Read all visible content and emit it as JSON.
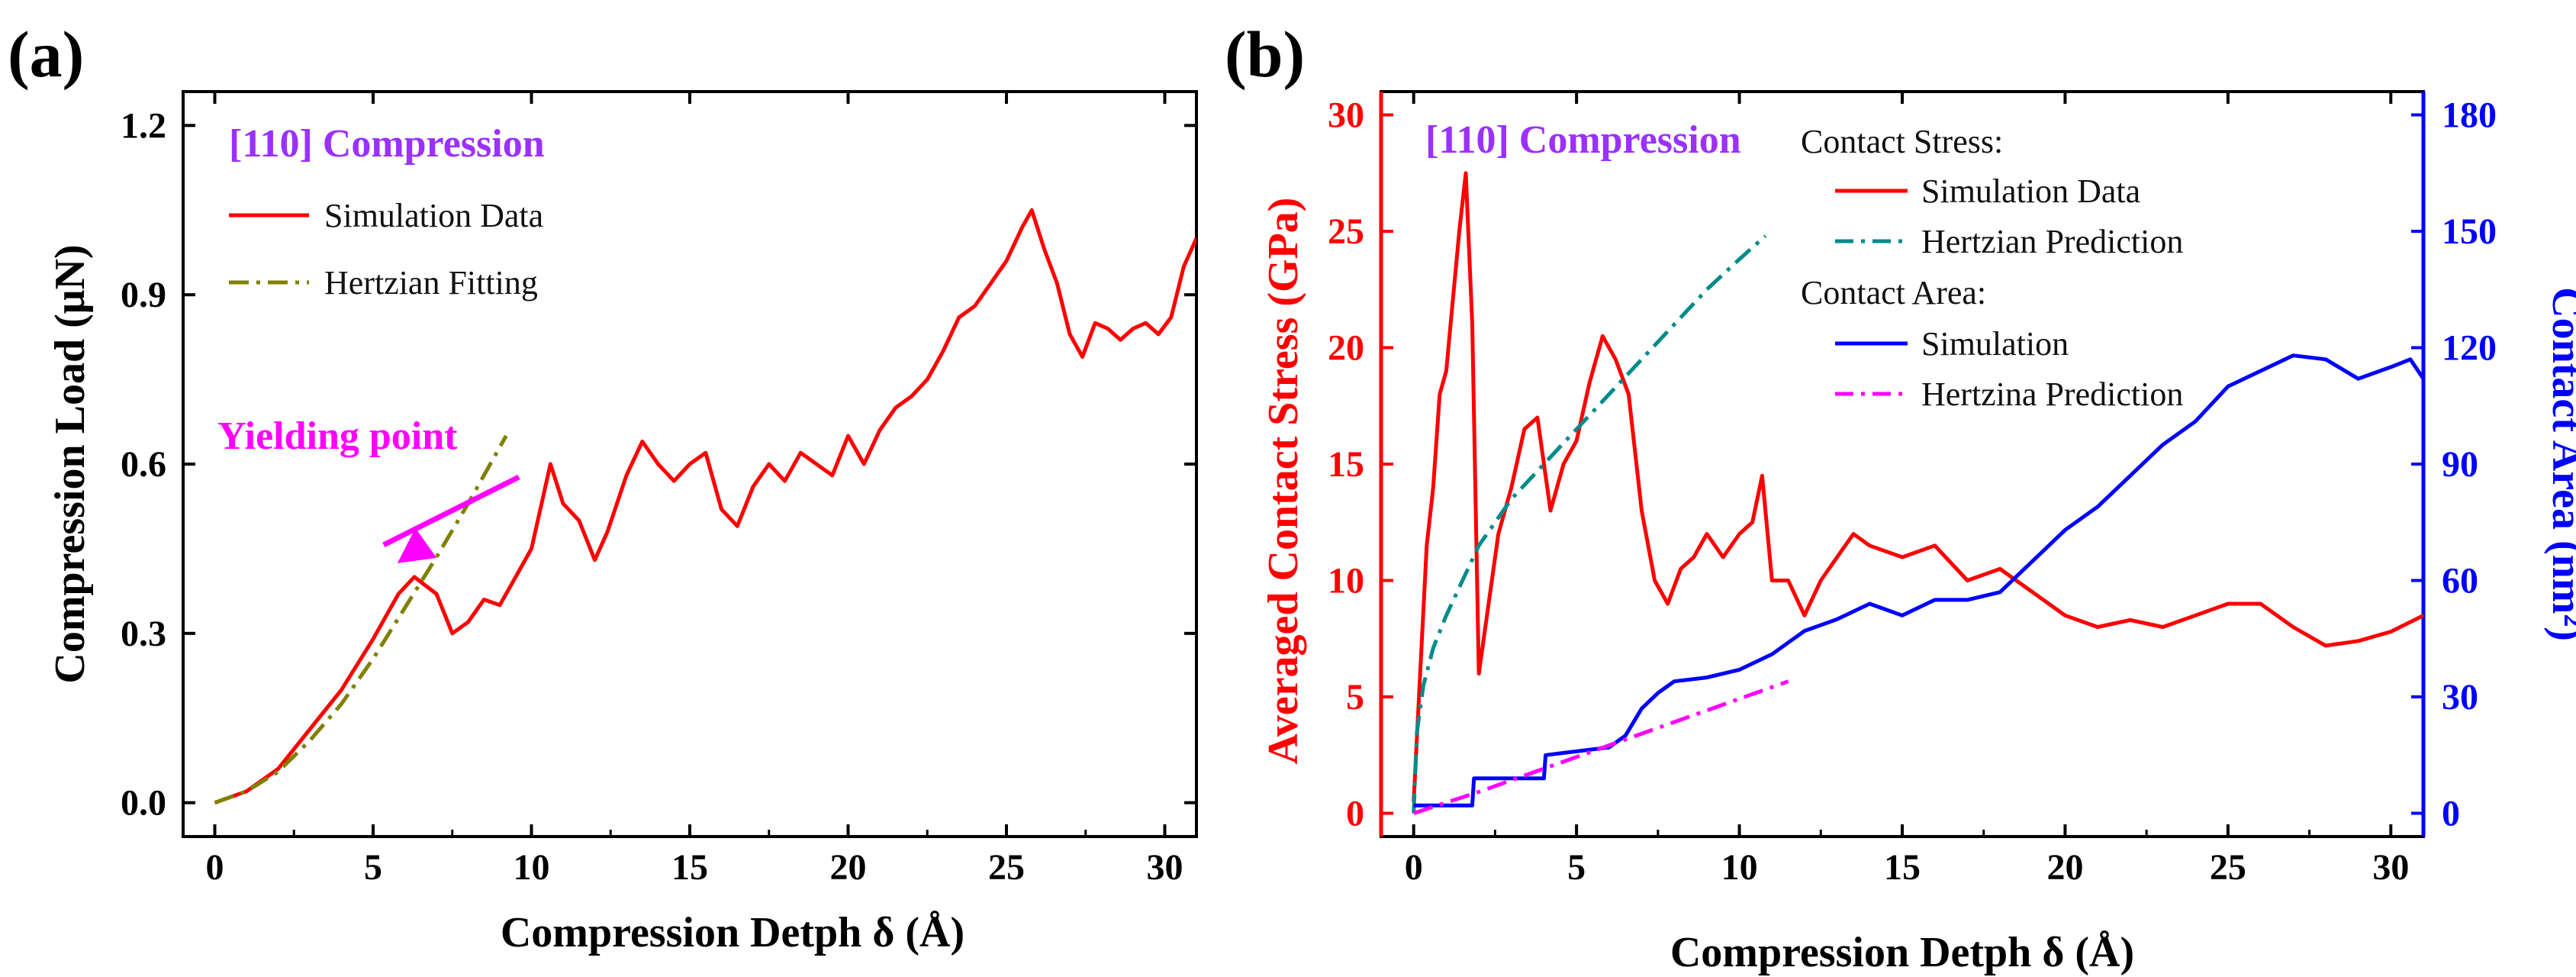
{
  "chart_data": [
    {
      "panel": "(a)",
      "type": "line",
      "title": "[110] Compression",
      "xlabel": "Compression Detph δ (Å)",
      "ylabel": "Compression Load (μN)",
      "xlim": [
        -1,
        31
      ],
      "ylim": [
        -0.06,
        1.26
      ],
      "xticks": [
        0,
        5,
        10,
        15,
        20,
        25,
        30
      ],
      "xtick_labels": [
        "0",
        "5",
        "10",
        "15",
        "20",
        "25",
        "30"
      ],
      "yticks": [
        0.0,
        0.3,
        0.6,
        0.9,
        1.2
      ],
      "ytick_labels": [
        "0.0",
        "0.3",
        "0.6",
        "0.9",
        "1.2"
      ],
      "annotation": "Yielding point",
      "annotation_point": [
        6.2,
        0.4
      ],
      "annotation_color": "#ff00ff",
      "title_color": "#9b30ff",
      "series": [
        {
          "name": "Simulation Data",
          "color": "#ff0000",
          "style": "solid",
          "x": [
            0,
            1,
            2,
            3,
            4,
            5,
            5.8,
            6.3,
            7,
            7.5,
            8,
            8.5,
            9,
            9.5,
            10,
            10.6,
            11,
            11.5,
            12,
            12.4,
            13,
            13.5,
            14,
            14.5,
            15,
            15.5,
            16,
            16.5,
            17,
            17.5,
            18,
            18.5,
            19,
            19.5,
            20,
            20.5,
            21,
            21.5,
            22,
            22.5,
            23,
            23.5,
            24,
            24.5,
            25,
            25.5,
            25.8,
            26.2,
            26.6,
            27,
            27.4,
            27.8,
            28.2,
            28.6,
            29,
            29.4,
            29.8,
            30.2,
            30.6,
            31
          ],
          "y": [
            0.0,
            0.02,
            0.06,
            0.13,
            0.2,
            0.29,
            0.37,
            0.4,
            0.37,
            0.3,
            0.32,
            0.36,
            0.35,
            0.4,
            0.45,
            0.6,
            0.53,
            0.5,
            0.43,
            0.48,
            0.58,
            0.64,
            0.6,
            0.57,
            0.6,
            0.62,
            0.52,
            0.49,
            0.56,
            0.6,
            0.57,
            0.62,
            0.6,
            0.58,
            0.65,
            0.6,
            0.66,
            0.7,
            0.72,
            0.75,
            0.8,
            0.86,
            0.88,
            0.92,
            0.96,
            1.02,
            1.05,
            0.98,
            0.92,
            0.83,
            0.79,
            0.85,
            0.84,
            0.82,
            0.84,
            0.85,
            0.83,
            0.86,
            0.95,
            1.0
          ]
        },
        {
          "name": "Hertzian Fitting",
          "color": "#808000",
          "style": "dashdot",
          "x": [
            0,
            1,
            2,
            3,
            4,
            5,
            6,
            7,
            8,
            9.2
          ],
          "y": [
            0.0,
            0.02,
            0.055,
            0.11,
            0.175,
            0.255,
            0.345,
            0.435,
            0.53,
            0.65
          ]
        }
      ]
    },
    {
      "panel": "(b)",
      "type": "line",
      "title": "[110] Compression",
      "title_color": "#9b30ff",
      "xlabel": "Compression Detph δ (Å)",
      "ylabel_left": "Averaged Contact Stress (GPa)",
      "ylabel_left_color": "#ff0000",
      "ylabel_right": "Contact Area (nm²)",
      "ylabel_right_color": "#0000ff",
      "xlim": [
        -1,
        31
      ],
      "ylim_left": [
        -1,
        31
      ],
      "ylim_right": [
        -6,
        186
      ],
      "xticks": [
        0,
        5,
        10,
        15,
        20,
        25,
        30
      ],
      "xtick_labels": [
        "0",
        "5",
        "10",
        "15",
        "20",
        "25",
        "30"
      ],
      "yticks_left": [
        0,
        5,
        10,
        15,
        20,
        25,
        30
      ],
      "ytick_labels_left": [
        "0",
        "5",
        "10",
        "15",
        "20",
        "25",
        "30"
      ],
      "yticks_right": [
        0,
        30,
        60,
        90,
        120,
        150,
        180
      ],
      "ytick_labels_right": [
        "0",
        "30",
        "60",
        "90",
        "120",
        "150",
        "180"
      ],
      "legend_groups": [
        "Contact Stress:",
        "Contact Area:"
      ],
      "series": [
        {
          "name": "Simulation Data",
          "group": "Contact Stress:",
          "axis": "left",
          "color": "#ff0000",
          "style": "solid",
          "x": [
            0,
            0.2,
            0.4,
            0.6,
            0.8,
            1.0,
            1.2,
            1.4,
            1.6,
            1.8,
            2.0,
            2.3,
            2.6,
            3.0,
            3.4,
            3.8,
            4.2,
            4.6,
            5.0,
            5.4,
            5.8,
            6.2,
            6.6,
            7.0,
            7.4,
            7.8,
            8.2,
            8.6,
            9.0,
            9.5,
            10.0,
            10.4,
            10.7,
            11.0,
            11.5,
            12.0,
            12.5,
            13.0,
            13.5,
            14.0,
            15.0,
            16.0,
            17.0,
            18.0,
            19.0,
            20.0,
            21.0,
            22.0,
            23.0,
            24.0,
            25.0,
            26.0,
            27.0,
            28.0,
            29.0,
            30.0,
            31.0
          ],
          "y": [
            0.5,
            6.0,
            11.5,
            14.0,
            18.0,
            19.0,
            22.0,
            25.0,
            27.5,
            21.0,
            6.0,
            9.0,
            12.0,
            14.0,
            16.5,
            17.0,
            13.0,
            15.0,
            16.0,
            18.5,
            20.5,
            19.5,
            18.0,
            13.0,
            10.0,
            9.0,
            10.5,
            11.0,
            12.0,
            11.0,
            12.0,
            12.5,
            14.5,
            10.0,
            10.0,
            8.5,
            10.0,
            11.0,
            12.0,
            11.5,
            11.0,
            11.5,
            10.0,
            10.5,
            9.5,
            8.5,
            8.0,
            8.3,
            8.0,
            8.5,
            9.0,
            9.0,
            8.0,
            7.2,
            7.4,
            7.8,
            8.5
          ]
        },
        {
          "name": "Hertzian Prediction",
          "group": "Contact Stress:",
          "axis": "left",
          "color": "#008b8b",
          "style": "dashdot",
          "x": [
            0,
            0.1,
            0.3,
            0.6,
            1.0,
            1.5,
            2.0,
            3.0,
            4.0,
            5.0,
            6.0,
            7.0,
            8.0,
            9.0,
            10.0,
            10.8
          ],
          "y": [
            0.0,
            3.5,
            5.5,
            7.1,
            8.5,
            10.0,
            11.5,
            13.5,
            15.0,
            16.5,
            18.0,
            19.5,
            21.0,
            22.5,
            23.8,
            24.8
          ]
        },
        {
          "name": "Simulation",
          "group": "Contact Area:",
          "axis": "right",
          "color": "#0000ff",
          "style": "solid",
          "x": [
            0,
            1.8,
            1.85,
            4.0,
            4.05,
            6.0,
            6.5,
            7.0,
            7.5,
            8.0,
            9.0,
            10.0,
            11.0,
            12.0,
            13.0,
            14.0,
            15.0,
            16.0,
            17.0,
            18.0,
            19.0,
            20.0,
            21.0,
            22.0,
            23.0,
            24.0,
            25.0,
            26.0,
            27.0,
            28.0,
            29.0,
            30.0,
            30.6,
            31.0
          ],
          "y": [
            2.0,
            2.0,
            9.0,
            9.0,
            15.0,
            17.0,
            20.0,
            27.0,
            31.0,
            34.0,
            35.0,
            37.0,
            41.0,
            47.0,
            50.0,
            54.0,
            51.0,
            55.0,
            55.0,
            57.0,
            65.0,
            73.0,
            79.0,
            87.0,
            95.0,
            101.0,
            110.0,
            114.0,
            118.0,
            117.0,
            112.0,
            115.0,
            117.0,
            112.0
          ]
        },
        {
          "name": "Hertzina Prediction",
          "group": "Contact Area:",
          "axis": "right",
          "color": "#ff00ff",
          "style": "dashdot",
          "x": [
            0,
            2,
            4,
            6,
            8,
            10,
            11.5
          ],
          "y": [
            0.0,
            5.5,
            11.5,
            17.5,
            23.5,
            29.5,
            34.0
          ]
        }
      ]
    }
  ]
}
